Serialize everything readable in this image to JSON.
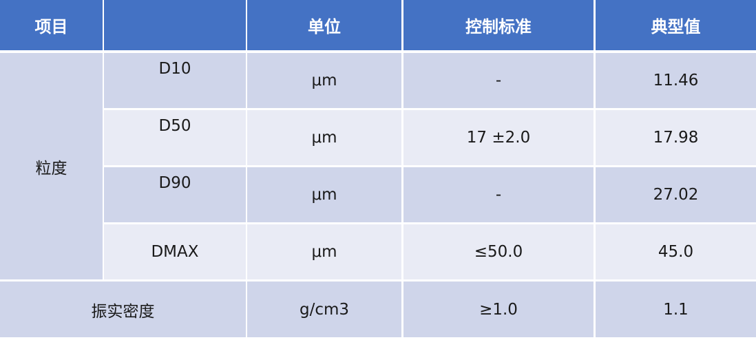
{
  "header": {
    "item": "项目",
    "sub": "",
    "unit": "单位",
    "standard": "控制标准",
    "typical": "典型值"
  },
  "group": "粒度",
  "rows": [
    {
      "name": "D10",
      "unit": "μm",
      "standard": "-",
      "typical": "11.46"
    },
    {
      "name": "D50",
      "unit": "μm",
      "standard": "17 ±2.0",
      "typical": "17.98"
    },
    {
      "name": "D90",
      "unit": "μm",
      "standard": "-",
      "typical": "27.02"
    },
    {
      "name": "DMAX",
      "unit": "μm",
      "standard": "≤50.0",
      "typical": "45.0"
    }
  ],
  "tap_density": {
    "name": "振实密度",
    "unit": "g/cm3",
    "standard": "≥1.0",
    "typical": "1.1"
  },
  "colors": {
    "header": "#4472c4",
    "row_dark": "#cfd5ea",
    "row_light": "#e9ebf5"
  }
}
